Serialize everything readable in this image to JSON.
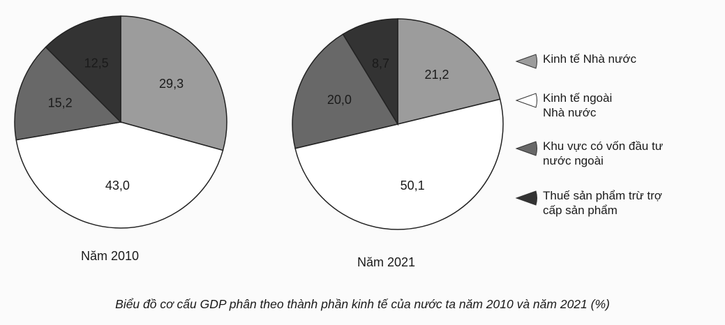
{
  "chart_data": [
    {
      "type": "pie",
      "title": "Năm 2010",
      "categories": [
        "Kinh tế Nhà nước",
        "Kinh tế ngoài Nhà nước",
        "Khu vực có vốn đầu tư nước ngoài",
        "Thuế sản phẩm trừ trợ cấp sản phẩm"
      ],
      "values": [
        29.3,
        43.0,
        15.2,
        12.5
      ],
      "labels": [
        "29,3",
        "43,0",
        "15,2",
        "12,5"
      ]
    },
    {
      "type": "pie",
      "title": "Năm 2021",
      "categories": [
        "Kinh tế Nhà nước",
        "Kinh tế ngoài Nhà nước",
        "Khu vực có vốn đầu tư nước ngoài",
        "Thuế sản phẩm trừ trợ cấp sản phẩm"
      ],
      "values": [
        21.2,
        50.1,
        20.0,
        8.7
      ],
      "labels": [
        "21,2",
        "50,1",
        "20,0",
        "8,7"
      ]
    }
  ],
  "legend": [
    {
      "label_lines": [
        "Kinh tế Nhà nước"
      ],
      "color": "#9c9c9c"
    },
    {
      "label_lines": [
        "Kinh tế ngoài",
        "Nhà nước"
      ],
      "color": "#ffffff"
    },
    {
      "label_lines": [
        "Khu vực có vốn đầu tư",
        "nước ngoài"
      ],
      "color": "#686868"
    },
    {
      "label_lines": [
        "Thuế sản phẩm trừ trợ",
        "cấp sản phẩm"
      ],
      "color": "#333333"
    }
  ],
  "caption": "Biểu đồ cơ cấu GDP phân theo thành phần kinh tế của nước ta năm 2010 và năm 2021 (%)",
  "unit": "%"
}
